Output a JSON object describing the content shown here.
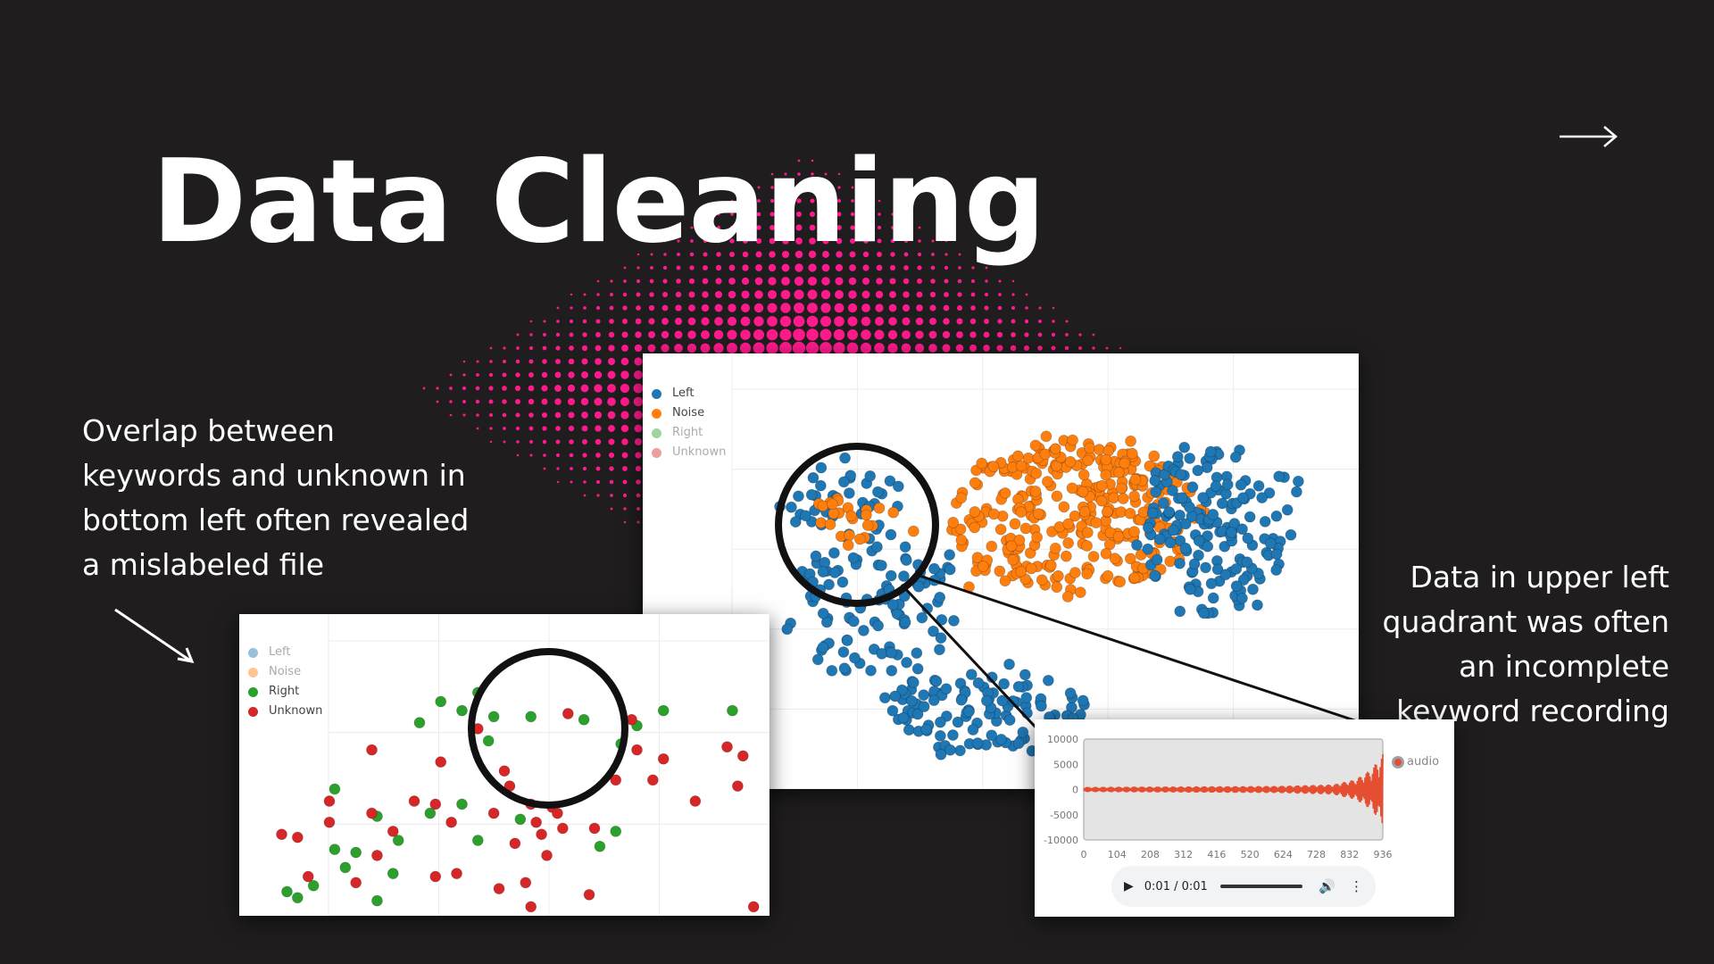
{
  "slide": {
    "title": "Data Cleaning",
    "annotation_left": "Overlap between keywords and unknown in bottom left often revealed a mislabeled file",
    "annotation_right": "Data in upper left quadrant was often an incomplete keyword recording",
    "accent_color": "#ff1a8c"
  },
  "icons": {
    "next": "right-arrow-icon",
    "pointer": "diagonal-arrow-icon"
  },
  "chart_data": [
    {
      "type": "scatter",
      "name_in_image": "main cluster plot",
      "legend": [
        {
          "label": "Left",
          "color": "#1f77b4",
          "visible": true
        },
        {
          "label": "Noise",
          "color": "#ff7f0e",
          "visible": true
        },
        {
          "label": "Right",
          "color": "#2ca02c",
          "visible": false
        },
        {
          "label": "Unknown",
          "color": "#d62728",
          "visible": false
        }
      ],
      "legend_position": "top-left",
      "grid": true,
      "clusters": [
        {
          "series": "Noise",
          "cx": 0.6,
          "cy": 0.38,
          "rx": 0.18,
          "ry": 0.18,
          "n": 330
        },
        {
          "series": "Left",
          "cx": 0.8,
          "cy": 0.4,
          "rx": 0.11,
          "ry": 0.2,
          "n": 170
        },
        {
          "series": "Left",
          "cx": 0.33,
          "cy": 0.58,
          "rx": 0.12,
          "ry": 0.16,
          "n": 110
        },
        {
          "series": "Left",
          "cx": 0.48,
          "cy": 0.82,
          "rx": 0.14,
          "ry": 0.09,
          "n": 120
        },
        {
          "series": "Left",
          "cx": 0.28,
          "cy": 0.33,
          "rx": 0.08,
          "ry": 0.09,
          "n": 40
        },
        {
          "series": "Noise",
          "cx": 0.3,
          "cy": 0.38,
          "rx": 0.06,
          "ry": 0.06,
          "n": 25
        }
      ]
    },
    {
      "type": "scatter",
      "name_in_image": "keyword vs unknown plot",
      "legend": [
        {
          "label": "Left",
          "color": "#1f77b4",
          "visible": false
        },
        {
          "label": "Noise",
          "color": "#ff7f0e",
          "visible": false
        },
        {
          "label": "Right",
          "color": "#2ca02c",
          "visible": true
        },
        {
          "label": "Unknown",
          "color": "#d62728",
          "visible": true
        }
      ],
      "legend_position": "top-left",
      "grid": true,
      "points": {
        "Right": [
          [
            0.38,
            0.29
          ],
          [
            0.42,
            0.32
          ],
          [
            0.45,
            0.26
          ],
          [
            0.48,
            0.34
          ],
          [
            0.55,
            0.34
          ],
          [
            0.47,
            0.42
          ],
          [
            0.34,
            0.36
          ],
          [
            0.18,
            0.58
          ],
          [
            0.26,
            0.67
          ],
          [
            0.3,
            0.75
          ],
          [
            0.2,
            0.84
          ],
          [
            0.14,
            0.9
          ],
          [
            0.11,
            0.94
          ],
          [
            0.22,
            0.79
          ],
          [
            0.36,
            0.66
          ],
          [
            0.29,
            0.86
          ],
          [
            0.18,
            0.78
          ],
          [
            0.09,
            0.92
          ],
          [
            0.45,
            0.75
          ],
          [
            0.65,
            0.35
          ],
          [
            0.72,
            0.43
          ],
          [
            0.75,
            0.37
          ],
          [
            0.8,
            0.32
          ],
          [
            0.93,
            0.32
          ],
          [
            0.71,
            0.72
          ],
          [
            0.68,
            0.77
          ],
          [
            0.53,
            0.68
          ],
          [
            0.42,
            0.63
          ],
          [
            0.26,
            0.95
          ]
        ],
        "Unknown": [
          [
            0.62,
            0.33
          ],
          [
            0.25,
            0.45
          ],
          [
            0.38,
            0.49
          ],
          [
            0.5,
            0.52
          ],
          [
            0.51,
            0.57
          ],
          [
            0.55,
            0.63
          ],
          [
            0.59,
            0.64
          ],
          [
            0.61,
            0.71
          ],
          [
            0.71,
            0.55
          ],
          [
            0.75,
            0.45
          ],
          [
            0.8,
            0.48
          ],
          [
            0.92,
            0.44
          ],
          [
            0.95,
            0.47
          ],
          [
            0.94,
            0.57
          ],
          [
            0.74,
            0.35
          ],
          [
            0.08,
            0.73
          ],
          [
            0.11,
            0.74
          ],
          [
            0.13,
            0.87
          ],
          [
            0.17,
            0.62
          ],
          [
            0.17,
            0.69
          ],
          [
            0.26,
            0.8
          ],
          [
            0.33,
            0.62
          ],
          [
            0.37,
            0.63
          ],
          [
            0.37,
            0.87
          ],
          [
            0.41,
            0.86
          ],
          [
            0.49,
            0.91
          ],
          [
            0.52,
            0.76
          ],
          [
            0.54,
            0.89
          ],
          [
            0.58,
            0.8
          ],
          [
            0.6,
            0.66
          ],
          [
            0.67,
            0.71
          ],
          [
            0.48,
            0.66
          ],
          [
            0.45,
            0.38
          ],
          [
            0.86,
            0.62
          ],
          [
            0.78,
            0.55
          ],
          [
            0.97,
            0.97
          ],
          [
            0.55,
            0.97
          ],
          [
            0.66,
            0.93
          ],
          [
            0.4,
            0.69
          ],
          [
            0.22,
            0.89
          ],
          [
            0.56,
            0.69
          ],
          [
            0.57,
            0.73
          ],
          [
            0.25,
            0.66
          ],
          [
            0.29,
            0.72
          ]
        ]
      }
    },
    {
      "type": "line",
      "name_in_image": "audio waveform",
      "legend": [
        {
          "label": "audio",
          "color": "#e54e30"
        }
      ],
      "y_ticks": [
        "10000",
        "5000",
        "0",
        "-5000",
        "-10000"
      ],
      "x_ticks": [
        "0",
        "104",
        "208",
        "312",
        "416",
        "520",
        "624",
        "728",
        "832",
        "936"
      ],
      "ylim": [
        -10000,
        10000
      ],
      "xlim": [
        0,
        936
      ],
      "amplitude_envelope": [
        [
          0,
          500
        ],
        [
          600,
          700
        ],
        [
          780,
          1000
        ],
        [
          850,
          2000
        ],
        [
          900,
          4000
        ],
        [
          936,
          7000
        ]
      ]
    }
  ],
  "player": {
    "time": "0:01 / 0:01"
  }
}
